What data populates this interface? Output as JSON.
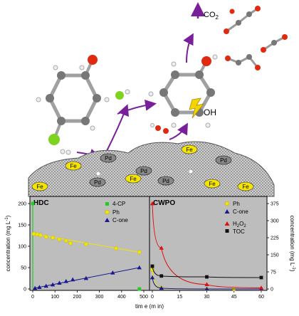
{
  "scheme": {
    "co2_label": "CO",
    "co2_sub": "2",
    "oh_label": "OH",
    "fe_labels": [
      "Fe",
      "Fe",
      "Fe",
      "Fe",
      "Fe",
      "Fe"
    ],
    "pd_labels": [
      "Pd",
      "Pd",
      "Pd",
      "Pd",
      "Pd"
    ]
  },
  "chart_data": [
    {
      "type": "scatter",
      "title": "HDC",
      "xlabel": "time (min)",
      "ylabel": "concentration (mg L⁻¹)",
      "xlim": [
        0,
        500
      ],
      "ylim": [
        0,
        200
      ],
      "xticks": [
        "0",
        "100",
        "200",
        "300",
        "400",
        "500"
      ],
      "yticks": [
        "0",
        "50",
        "100",
        "150",
        "200"
      ],
      "series": [
        {
          "name": "4-CP",
          "color": "#22cc22",
          "marker": "square",
          "x": [
            0,
            480
          ],
          "y": [
            200,
            0
          ]
        },
        {
          "name": "Ph",
          "color": "#f2e600",
          "marker": "circle",
          "x": [
            5,
            20,
            35,
            60,
            90,
            120,
            150,
            170,
            240,
            375,
            480
          ],
          "y": [
            129,
            128,
            126,
            122,
            120,
            116,
            113,
            107,
            105,
            95,
            86
          ]
        },
        {
          "name": "C-one",
          "color": "#1a1a8c",
          "marker": "triangle",
          "x": [
            10,
            30,
            60,
            90,
            120,
            150,
            180,
            240,
            360,
            480
          ],
          "y": [
            2,
            4,
            7,
            10,
            14,
            18,
            22,
            25,
            38,
            50
          ]
        }
      ]
    },
    {
      "type": "scatter",
      "title": "CWPO",
      "xlabel": "time (min)",
      "ylabel": "concentration (mg L⁻¹)",
      "xlim": [
        0,
        60
      ],
      "ylim": [
        0,
        375
      ],
      "xticks": [
        "0",
        "15",
        "30",
        "45",
        "60"
      ],
      "yticks": [
        "0",
        "75",
        "150",
        "225",
        "300",
        "375"
      ],
      "series": [
        {
          "name": "Ph",
          "color": "#f2e600",
          "marker": "circle",
          "x": [
            0,
            5,
            30,
            45,
            60
          ],
          "y": [
            85,
            5,
            0,
            0,
            0
          ]
        },
        {
          "name": "C-one",
          "color": "#1a1a8c",
          "marker": "triangle",
          "x": [
            0,
            5,
            30,
            60
          ],
          "y": [
            50,
            4,
            0,
            0
          ]
        },
        {
          "name": "H2O2",
          "color": "#dd1111",
          "marker": "triangle",
          "x": [
            0,
            5,
            30,
            60
          ],
          "y": [
            375,
            180,
            20,
            5
          ]
        },
        {
          "name": "TOC",
          "color": "#111111",
          "marker": "square",
          "x": [
            0,
            5,
            30,
            60
          ],
          "y": [
            100,
            57,
            53,
            50
          ]
        }
      ]
    }
  ],
  "legend": {
    "hdc": [
      {
        "label": "4-CP"
      },
      {
        "label": "Ph"
      },
      {
        "label": "C-one"
      }
    ],
    "cwpo": [
      {
        "label": "Ph"
      },
      {
        "label": "C-one"
      },
      {
        "label": "H",
        "sub": "2",
        "label2": "O",
        "sub2": "2"
      },
      {
        "label": "TOC"
      }
    ]
  },
  "axes": {
    "x_title": "tim e (m in)",
    "y_left_title": "concentration (mg L",
    "y_left_sup": "-1",
    "y_left_close": ")",
    "y_right_title": "concentration (mg L",
    "y_right_sup": "-1",
    "y_right_close": ")"
  }
}
